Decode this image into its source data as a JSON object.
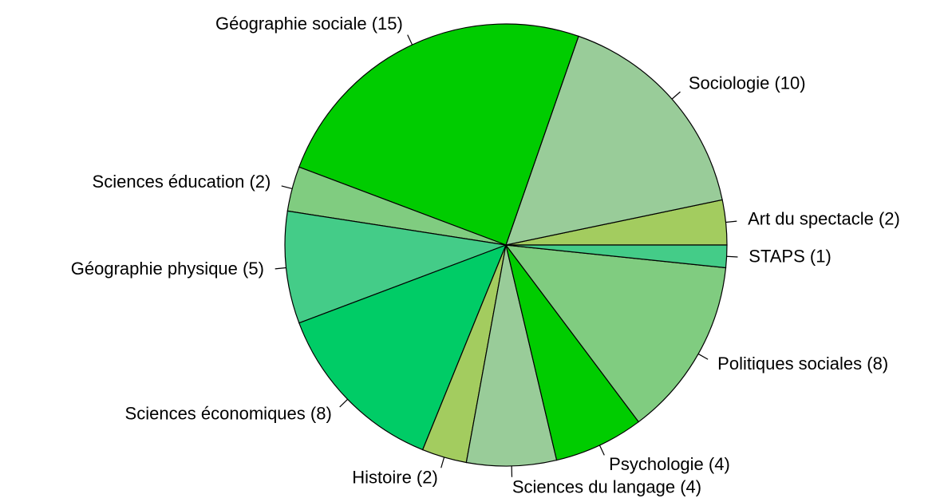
{
  "chart_data": {
    "type": "pie",
    "categories": [
      "Art du spectacle (2)",
      "Sociologie (10)",
      "Géographie sociale (15)",
      "Sciences éducation (2)",
      "Géographie physique (5)",
      "Sciences économiques (8)",
      "Histoire (2)",
      "Sciences du langage (4)",
      "Psychologie (4)",
      "Politiques sociales (8)",
      "STAPS (1)"
    ],
    "values": [
      2,
      10,
      15,
      2,
      5,
      8,
      2,
      4,
      4,
      8,
      1
    ],
    "colors": [
      "#a3cc5f",
      "#99cc99",
      "#00cc00",
      "#80cc80",
      "#44cc88",
      "#00cc66",
      "#a3cc5f",
      "#99cc99",
      "#00cc00",
      "#80cc80",
      "#44cc88"
    ]
  }
}
